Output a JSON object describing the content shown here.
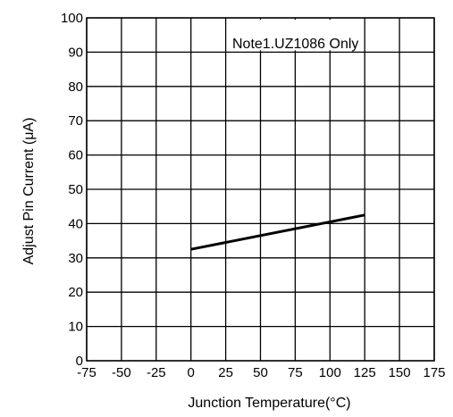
{
  "chart_data": {
    "type": "line",
    "xlabel": "Junction Temperature(°C)",
    "ylabel": "Adjust Pin Current (μA)",
    "xlim": [
      -75,
      175
    ],
    "ylim": [
      0,
      100
    ],
    "xticks": [
      "-75",
      "-50",
      "-25",
      "0",
      "25",
      "50",
      "75",
      "100",
      "125",
      "150",
      "175"
    ],
    "yticks": [
      "0",
      "10",
      "20",
      "30",
      "40",
      "50",
      "60",
      "70",
      "80",
      "90",
      "100"
    ],
    "grid": true,
    "annotation": "Note1.UZ1086 Only",
    "series": [
      {
        "x": [
          0,
          125
        ],
        "y": [
          32.5,
          42.5
        ]
      }
    ]
  }
}
